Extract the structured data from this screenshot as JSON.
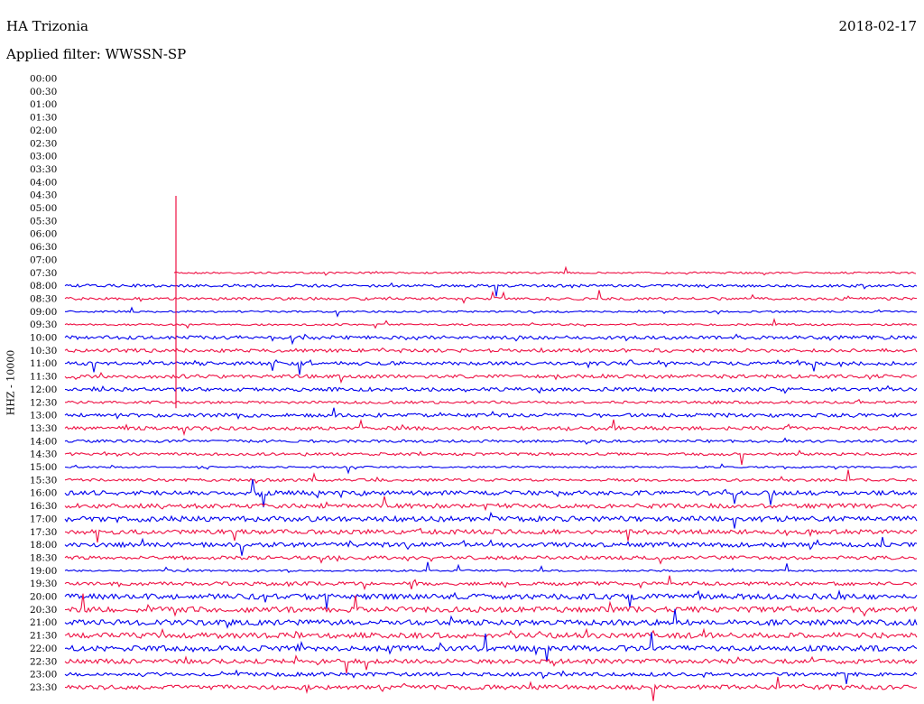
{
  "header": {
    "station": "HA Trizonia",
    "date": "2018-02-17",
    "filter_label": "Applied filter:",
    "filter_name": "WWSSN-SP"
  },
  "scale_label": "HHZ - 10000",
  "colors": {
    "even_half_hour": "#0000ee",
    "odd_half_hour": "#ee1144",
    "text": "#000000"
  },
  "chart_data": {
    "type": "line",
    "title": "HA Trizonia",
    "subtitle": "Applied filter: WWSSN-SP",
    "date": "2018-02-17",
    "ylabel": "HHZ - 10000",
    "row_labels": [
      "00:00",
      "00:30",
      "01:00",
      "01:30",
      "02:00",
      "02:30",
      "03:00",
      "03:30",
      "04:00",
      "04:30",
      "05:00",
      "05:30",
      "06:00",
      "06:30",
      "07:00",
      "07:30",
      "08:00",
      "08:30",
      "09:00",
      "09:30",
      "10:00",
      "10:30",
      "11:00",
      "11:30",
      "12:00",
      "12:30",
      "13:00",
      "13:30",
      "14:00",
      "14:30",
      "15:00",
      "15:30",
      "16:00",
      "16:30",
      "17:00",
      "17:30",
      "18:00",
      "18:30",
      "19:00",
      "19:30",
      "20:00",
      "20:30",
      "21:00",
      "21:30",
      "22:00",
      "22:30",
      "23:00",
      "23:30"
    ],
    "trace_start_row": "07:30",
    "noise_level_by_row": {
      "07:30": 1,
      "08:00": 1.5,
      "08:30": 1.5,
      "09:00": 1,
      "09:30": 1,
      "10:00": 2,
      "10:30": 2,
      "11:00": 2,
      "11:30": 2,
      "12:00": 2,
      "12:30": 1.5,
      "13:00": 2,
      "13:30": 2,
      "14:00": 1.5,
      "14:30": 1.5,
      "15:00": 1,
      "15:30": 1.5,
      "16:00": 2.5,
      "16:30": 2.5,
      "17:00": 3,
      "17:30": 2.5,
      "18:00": 2.5,
      "18:30": 2,
      "19:00": 1,
      "19:30": 2,
      "20:00": 3,
      "20:30": 3,
      "21:00": 3,
      "21:30": 3,
      "22:00": 3,
      "22:30": 2.5,
      "23:00": 2,
      "23:30": 2.5
    }
  }
}
